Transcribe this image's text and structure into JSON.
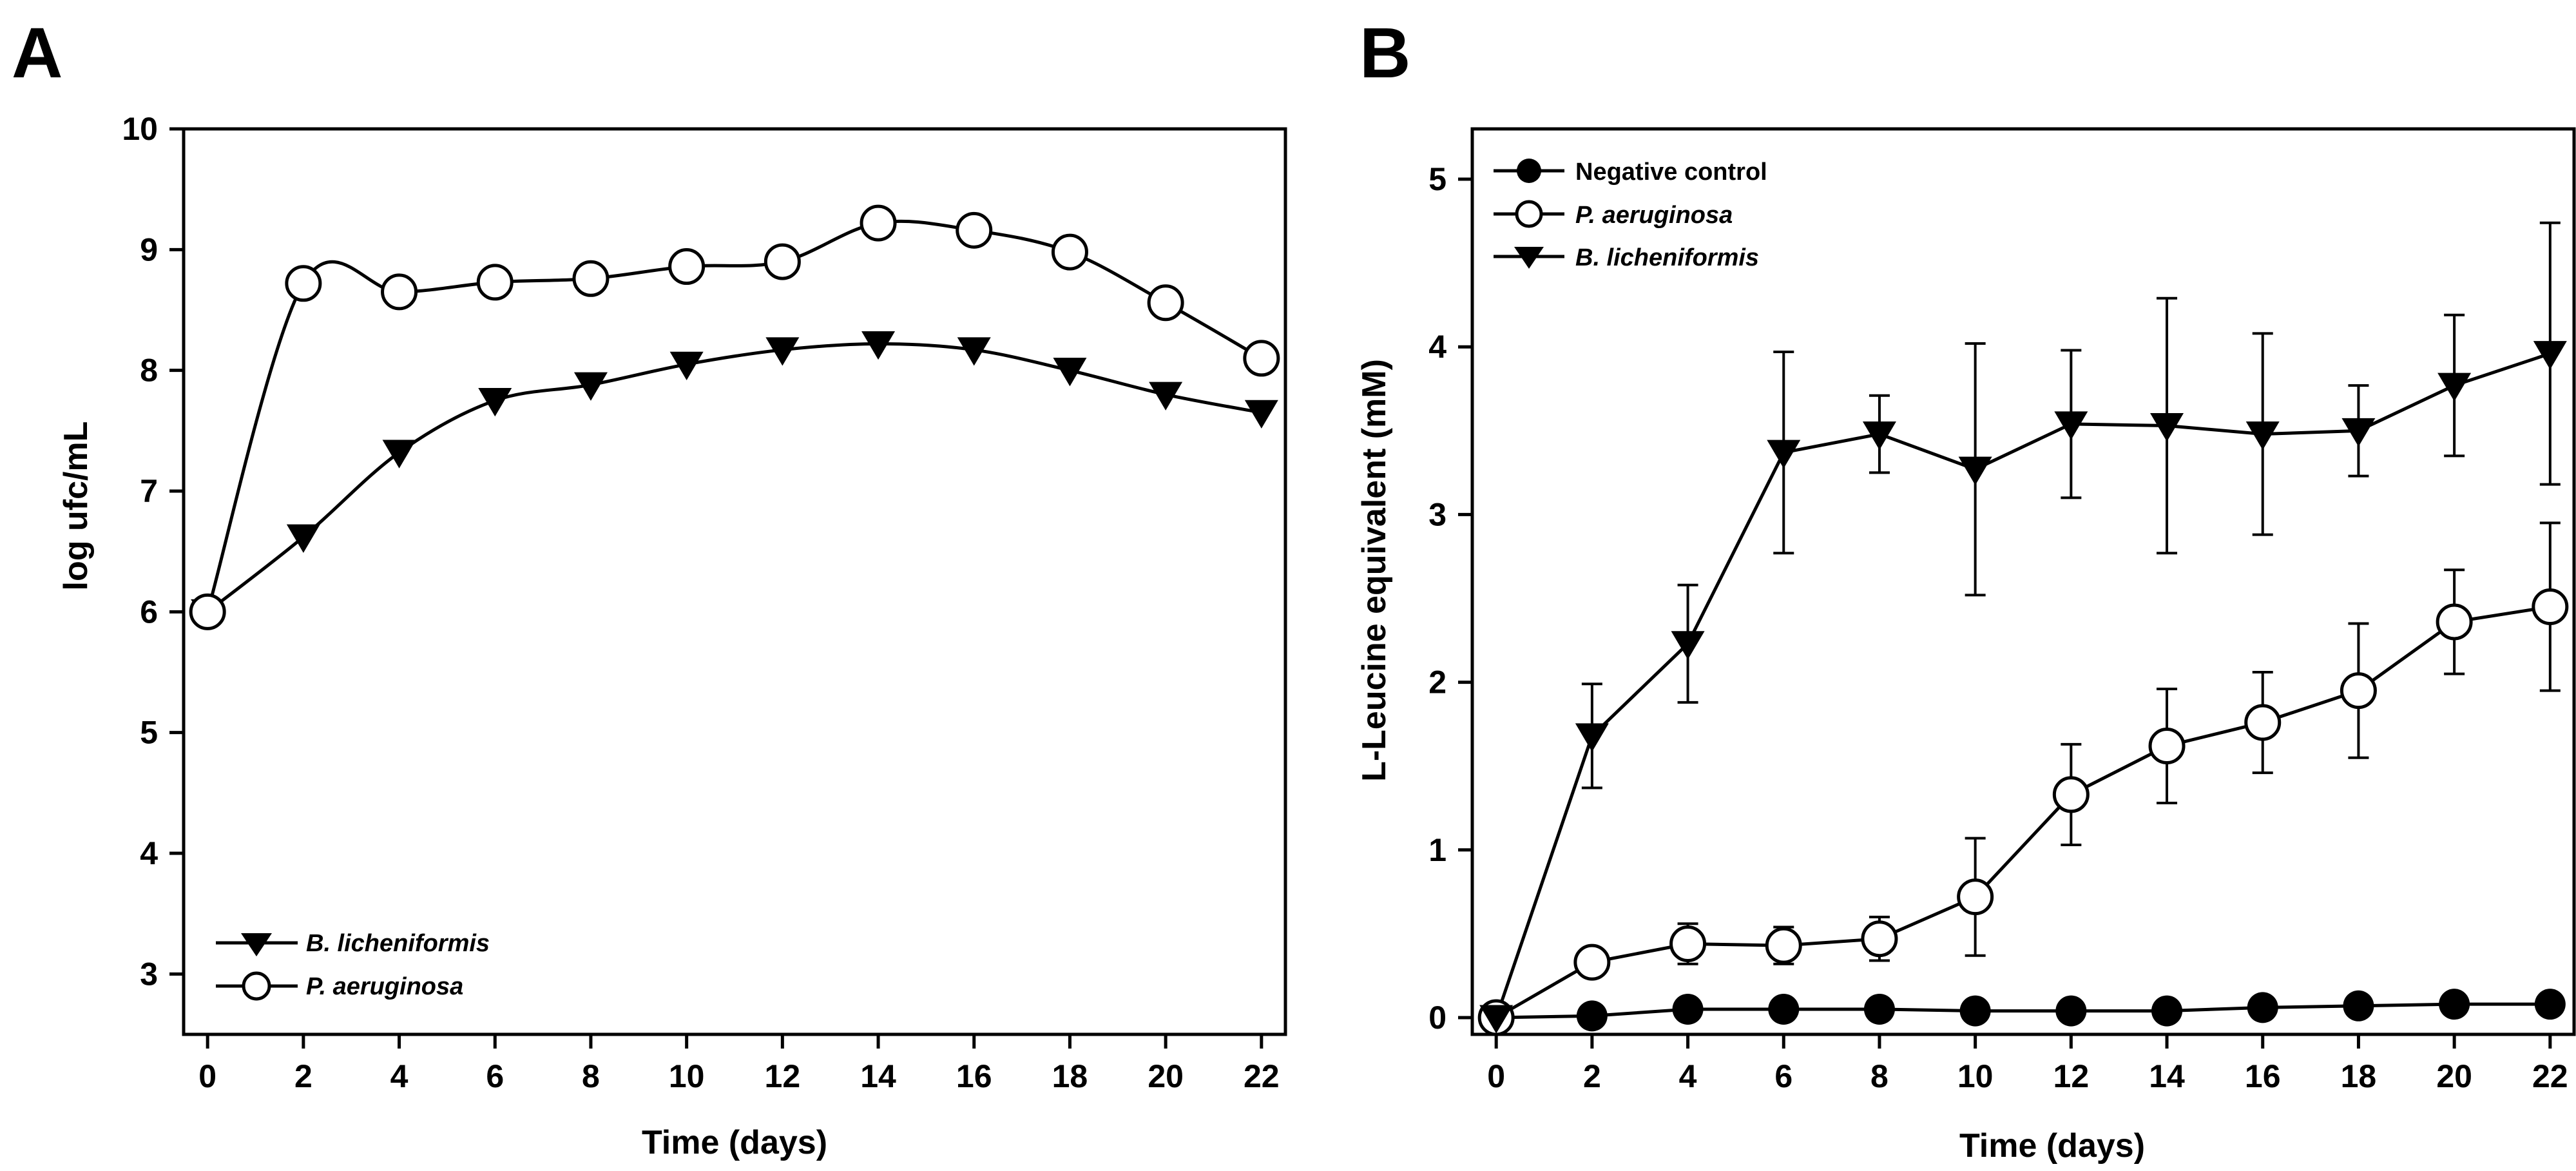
{
  "chart_data": [
    {
      "panel_label": "A",
      "type": "line",
      "xlabel": "Time (days)",
      "ylabel": "log ufc/mL",
      "xlim": [
        -0.5,
        22.5
      ],
      "ylim": [
        2.5,
        10
      ],
      "xticks": [
        0,
        2,
        4,
        6,
        8,
        10,
        12,
        14,
        16,
        18,
        20,
        22
      ],
      "yticks": [
        3,
        4,
        5,
        6,
        7,
        8,
        9,
        10
      ],
      "smooth": true,
      "grid": false,
      "legend_position": "bottom-left",
      "series": [
        {
          "name": "B. licheniformis",
          "marker": "triangle-down-filled",
          "x": [
            0,
            2,
            4,
            6,
            8,
            10,
            12,
            14,
            16,
            18,
            20,
            22
          ],
          "y": [
            6.0,
            6.62,
            7.32,
            7.75,
            7.88,
            8.05,
            8.17,
            8.22,
            8.17,
            8.0,
            7.8,
            7.65
          ]
        },
        {
          "name": "P. aeruginosa",
          "marker": "circle-open",
          "x": [
            0,
            2,
            4,
            6,
            8,
            10,
            12,
            14,
            16,
            18,
            20,
            22
          ],
          "y": [
            6.0,
            8.72,
            8.65,
            8.73,
            8.76,
            8.86,
            8.9,
            9.22,
            9.16,
            8.98,
            8.56,
            8.1
          ]
        }
      ]
    },
    {
      "panel_label": "B",
      "type": "line",
      "xlabel": "Time (days)",
      "ylabel": "L-Leucine equivalent (mM)",
      "xlim": [
        -0.5,
        22.5
      ],
      "ylim": [
        -0.1,
        5.3
      ],
      "xticks": [
        0,
        2,
        4,
        6,
        8,
        10,
        12,
        14,
        16,
        18,
        20,
        22
      ],
      "yticks": [
        0,
        1,
        2,
        3,
        4,
        5
      ],
      "smooth": false,
      "grid": false,
      "legend_position": "top-left",
      "series": [
        {
          "name": "Negative control",
          "marker": "circle-filled",
          "x": [
            0,
            2,
            4,
            6,
            8,
            10,
            12,
            14,
            16,
            18,
            20,
            22
          ],
          "y": [
            0.0,
            0.01,
            0.05,
            0.05,
            0.05,
            0.04,
            0.04,
            0.04,
            0.06,
            0.07,
            0.08,
            0.08
          ],
          "error": [
            0,
            0,
            0,
            0,
            0,
            0,
            0,
            0,
            0,
            0,
            0,
            0
          ]
        },
        {
          "name": "P. aeruginosa",
          "marker": "circle-open",
          "x": [
            0,
            2,
            4,
            6,
            8,
            10,
            12,
            14,
            16,
            18,
            20,
            22
          ],
          "y": [
            0.0,
            0.33,
            0.44,
            0.43,
            0.47,
            0.72,
            1.33,
            1.62,
            1.76,
            1.95,
            2.36,
            2.45
          ],
          "error": [
            0,
            0.05,
            0.12,
            0.11,
            0.13,
            0.35,
            0.3,
            0.34,
            0.3,
            0.4,
            0.31,
            0.5
          ]
        },
        {
          "name": "B. licheniformis",
          "marker": "triangle-down-filled",
          "x": [
            0,
            2,
            4,
            6,
            8,
            10,
            12,
            14,
            16,
            18,
            20,
            22
          ],
          "y": [
            0.0,
            1.68,
            2.23,
            3.37,
            3.48,
            3.27,
            3.54,
            3.53,
            3.48,
            3.5,
            3.77,
            3.96
          ],
          "error": [
            0,
            0.31,
            0.35,
            0.6,
            0.23,
            0.75,
            0.44,
            0.76,
            0.6,
            0.27,
            0.42,
            0.78
          ]
        }
      ]
    }
  ]
}
